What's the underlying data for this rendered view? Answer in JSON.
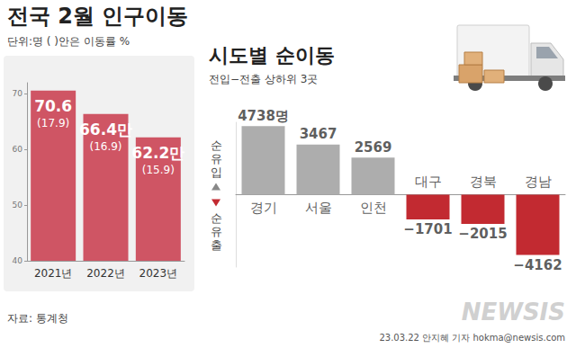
{
  "chart_data": [
    {
      "type": "bar",
      "title": "전국 2월 인구이동",
      "subtitle": "단위:명 ( )안은 이동률 %",
      "categories": [
        "2021년",
        "2022년",
        "2023년"
      ],
      "values": [
        70.6,
        66.4,
        62.2
      ],
      "value_labels": [
        "70.6",
        "66.4만",
        "62.2만"
      ],
      "rate_labels": [
        "(17.9)",
        "(16.9)",
        "(15.9)"
      ],
      "color": "#cf5564",
      "ylim": [
        40,
        72
      ],
      "yticks": [
        40,
        50,
        60,
        70
      ],
      "grid": false,
      "data_labels": true
    },
    {
      "type": "bar",
      "title": "시도별 순이동",
      "subtitle": "전입−전출 상하위 3곳",
      "categories": [
        "경기",
        "서울",
        "인천",
        "대구",
        "경북",
        "경남"
      ],
      "values": [
        4738,
        3467,
        2569,
        -1701,
        -2015,
        -4162
      ],
      "value_labels": [
        "4738명",
        "3467",
        "2569",
        "−1701",
        "−2015",
        "−4162"
      ],
      "colors": [
        "#adadad",
        "#adadad",
        "#adadad",
        "#c22a31",
        "#c22a31",
        "#c22a31"
      ],
      "ylim": [
        -5000,
        5000
      ],
      "grid": false,
      "data_labels": true,
      "tick_labels": "x",
      "annotations": [
        "순유입",
        "순유출"
      ]
    }
  ],
  "source": "자료: 통계청",
  "credit": "23.03.22 안지혜 기자 hokma@newsis.com",
  "watermark": "NEWSIS"
}
